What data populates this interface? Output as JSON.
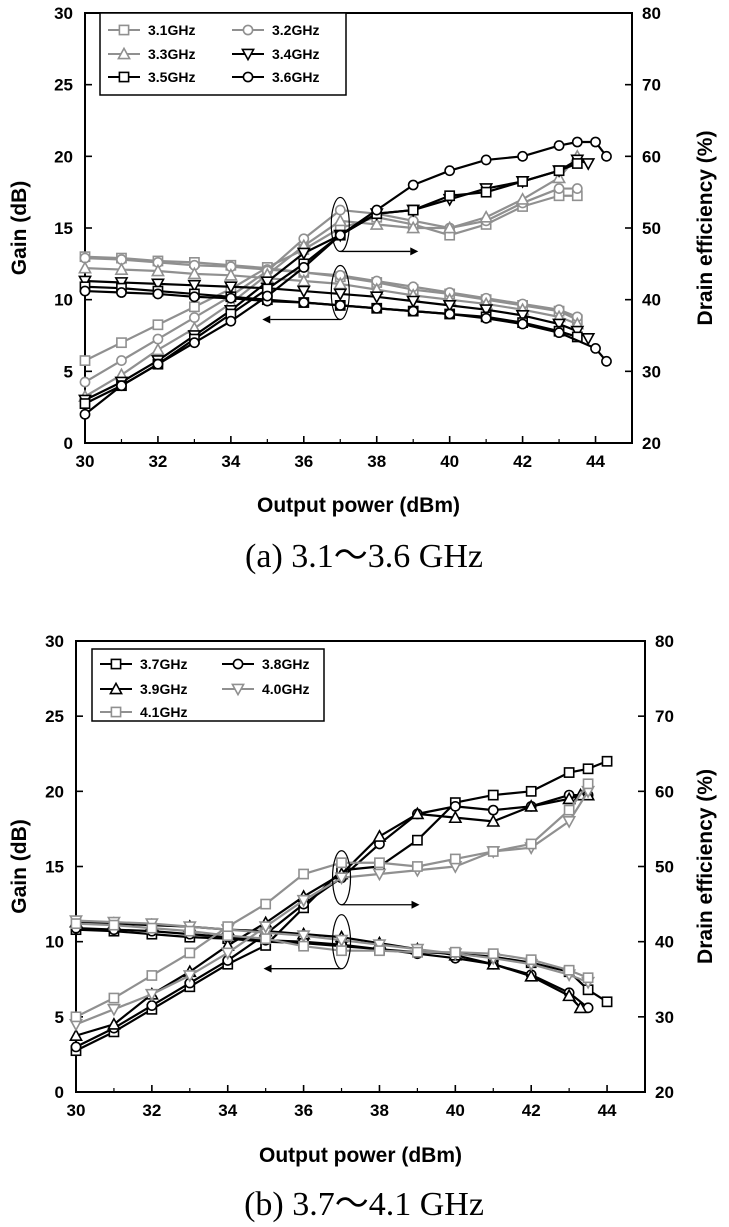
{
  "chart_data": [
    {
      "type": "line",
      "caption": "(a)  3.1～3.6  GHz",
      "xlabel": "Output power (dBm)",
      "ylabel": "Gain (dB)",
      "y2label": "Drain efficiency (%)",
      "xlim": [
        30,
        45
      ],
      "ylim": [
        0,
        30
      ],
      "y2lim": [
        20,
        80
      ],
      "xticks": [
        30,
        32,
        34,
        36,
        38,
        40,
        42,
        44
      ],
      "yticks": [
        0,
        5,
        10,
        15,
        20,
        25,
        30
      ],
      "y2ticks": [
        20,
        30,
        40,
        50,
        60,
        70,
        80
      ],
      "legend_position": "top-left",
      "annotations": [
        "ellipse at 37 dBm with arrow pointing right (efficiency axis)",
        "ellipse at 37 dBm with arrow pointing left (gain axis)"
      ],
      "series": [
        {
          "name": "3.1GHz",
          "marker": "square",
          "color": "#909090",
          "gain": {
            "x": [
              30,
              31,
              32,
              33,
              34,
              35,
              36,
              37,
              38,
              39,
              40,
              41,
              42,
              43,
              43.5
            ],
            "y": [
              13.0,
              12.9,
              12.7,
              12.6,
              12.4,
              12.2,
              11.9,
              11.6,
              11.2,
              10.7,
              10.4,
              10.0,
              9.6,
              9.2,
              8.6
            ]
          },
          "efficiency": {
            "x": [
              30,
              31,
              32,
              33,
              34,
              35,
              36,
              37,
              38,
              39,
              40,
              41,
              42,
              43,
              43.5
            ],
            "y": [
              31.5,
              34.0,
              36.5,
              39.0,
              41.5,
              44.5,
              47.0,
              50.0,
              51.5,
              50.5,
              49.0,
              50.5,
              53.0,
              54.5,
              54.5
            ]
          }
        },
        {
          "name": "3.2GHz",
          "marker": "circle",
          "color": "#909090",
          "gain": {
            "x": [
              30,
              31,
              32,
              33,
              34,
              35,
              36,
              37,
              38,
              39,
              40,
              41,
              42,
              43,
              43.5
            ],
            "y": [
              12.9,
              12.8,
              12.6,
              12.4,
              12.3,
              12.1,
              11.9,
              11.7,
              11.3,
              10.9,
              10.5,
              10.1,
              9.7,
              9.3,
              8.8
            ]
          },
          "efficiency": {
            "x": [
              30,
              31,
              32,
              33,
              34,
              35,
              36,
              37,
              38,
              39,
              40,
              41,
              42,
              43,
              43.5
            ],
            "y": [
              28.5,
              31.5,
              34.5,
              37.5,
              40.5,
              44.0,
              48.5,
              52.5,
              52.0,
              51.0,
              50.0,
              51.0,
              53.5,
              55.5,
              55.5
            ]
          }
        },
        {
          "name": "3.3GHz",
          "marker": "triangle-up",
          "color": "#909090",
          "gain": {
            "x": [
              30,
              31,
              32,
              33,
              34,
              35,
              36,
              37,
              38,
              39,
              40,
              41,
              42,
              43,
              43.5
            ],
            "y": [
              12.2,
              12.1,
              12.0,
              11.8,
              11.7,
              11.5,
              11.3,
              11.1,
              10.7,
              10.3,
              10.0,
              9.7,
              9.3,
              8.8,
              8.3
            ]
          },
          "efficiency": {
            "x": [
              30,
              31,
              32,
              33,
              34,
              35,
              36,
              37,
              38,
              39,
              40,
              41,
              42,
              43,
              43.5
            ],
            "y": [
              26.5,
              29.5,
              33.0,
              36.0,
              39.5,
              43.5,
              47.5,
              51.0,
              50.5,
              50.0,
              50.0,
              51.5,
              54.0,
              57.0,
              60.0
            ]
          }
        },
        {
          "name": "3.4GHz",
          "marker": "triangle-down",
          "color": "#000000",
          "gain": {
            "x": [
              30,
              31,
              32,
              33,
              34,
              35,
              36,
              37,
              38,
              39,
              40,
              41,
              42,
              43,
              43.5,
              43.8
            ],
            "y": [
              11.3,
              11.2,
              11.1,
              11.0,
              10.9,
              10.8,
              10.6,
              10.4,
              10.2,
              9.9,
              9.6,
              9.3,
              8.9,
              8.3,
              7.8,
              7.3
            ]
          },
          "efficiency": {
            "x": [
              30,
              31,
              32,
              33,
              34,
              35,
              36,
              37,
              38,
              39,
              40,
              41,
              42,
              43,
              43.5,
              43.8
            ],
            "y": [
              26.0,
              28.5,
              31.5,
              35.0,
              38.5,
              42.5,
              46.5,
              49.0,
              52.0,
              52.5,
              54.0,
              55.5,
              56.5,
              58.0,
              59.5,
              59.0
            ]
          }
        },
        {
          "name": "3.5GHz",
          "marker": "square",
          "color": "#000000",
          "gain": {
            "x": [
              30,
              31,
              32,
              33,
              34,
              35,
              36,
              37,
              38,
              39,
              40,
              41,
              42,
              43,
              43.5
            ],
            "y": [
              10.9,
              10.8,
              10.6,
              10.4,
              10.2,
              10.0,
              9.8,
              9.6,
              9.4,
              9.2,
              9.0,
              8.8,
              8.4,
              7.8,
              7.4
            ]
          },
          "efficiency": {
            "x": [
              30,
              31,
              32,
              33,
              34,
              35,
              36,
              37,
              38,
              39,
              40,
              41,
              42,
              43,
              43.5
            ],
            "y": [
              25.5,
              28.0,
              31.0,
              34.5,
              38.0,
              41.5,
              45.0,
              49.0,
              52.0,
              52.5,
              54.5,
              55.0,
              56.5,
              58.0,
              59.0
            ]
          }
        },
        {
          "name": "3.6GHz",
          "marker": "circle",
          "color": "#000000",
          "gain": {
            "x": [
              30,
              31,
              32,
              33,
              34,
              35,
              36,
              37,
              38,
              39,
              40,
              41,
              42,
              43,
              44,
              44.3
            ],
            "y": [
              10.6,
              10.5,
              10.4,
              10.2,
              10.1,
              9.9,
              9.8,
              9.6,
              9.4,
              9.2,
              9.0,
              8.7,
              8.3,
              7.7,
              6.6,
              5.7
            ]
          },
          "efficiency": {
            "x": [
              30,
              31,
              32,
              33,
              34,
              35,
              36,
              37,
              38,
              39,
              40,
              41,
              42,
              43,
              43.5,
              44,
              44.3
            ],
            "y": [
              24.0,
              28.0,
              31.0,
              34.0,
              37.0,
              40.5,
              44.5,
              49.0,
              52.5,
              56.0,
              58.0,
              59.5,
              60.0,
              61.5,
              62.0,
              62.0,
              60.0
            ]
          }
        }
      ]
    },
    {
      "type": "line",
      "caption": "(b)  3.7～4.1  GHz",
      "xlabel": "Output power (dBm)",
      "ylabel": "Gain (dB)",
      "y2label": "Drain efficiency (%)",
      "xlim": [
        30,
        45
      ],
      "ylim": [
        0,
        30
      ],
      "y2lim": [
        20,
        80
      ],
      "xticks": [
        30,
        32,
        34,
        36,
        38,
        40,
        42,
        44
      ],
      "yticks": [
        0,
        5,
        10,
        15,
        20,
        25,
        30
      ],
      "y2ticks": [
        20,
        30,
        40,
        50,
        60,
        70,
        80
      ],
      "legend_position": "top-left",
      "annotations": [
        "ellipse at 37 dBm with arrow pointing right (efficiency axis)",
        "ellipse at 37 dBm with arrow pointing left (gain axis)"
      ],
      "series": [
        {
          "name": "3.7GHz",
          "marker": "square",
          "color": "#000000",
          "gain": {
            "x": [
              30,
              31,
              32,
              33,
              34,
              35,
              36,
              37,
              38,
              39,
              40,
              41,
              42,
              43,
              43.5,
              44
            ],
            "y": [
              10.8,
              10.7,
              10.5,
              10.3,
              10.2,
              10.0,
              9.9,
              9.7,
              9.5,
              9.3,
              9.2,
              9.0,
              8.6,
              8.0,
              6.8,
              6.0
            ]
          },
          "efficiency": {
            "x": [
              30,
              31,
              32,
              33,
              34,
              35,
              36,
              37,
              38,
              39,
              40,
              41,
              42,
              43,
              43.5,
              44
            ],
            "y": [
              25.5,
              28.0,
              31.0,
              34.0,
              37.0,
              39.5,
              44.5,
              49.5,
              50.0,
              53.5,
              58.5,
              59.5,
              60.0,
              62.5,
              63.0,
              64.0
            ]
          }
        },
        {
          "name": "3.8GHz",
          "marker": "circle",
          "color": "#000000",
          "gain": {
            "x": [
              30,
              31,
              32,
              33,
              34,
              35,
              36,
              37,
              38,
              39,
              40,
              41,
              42,
              43,
              43.5
            ],
            "y": [
              10.9,
              10.8,
              10.7,
              10.5,
              10.3,
              10.1,
              10.0,
              9.8,
              9.5,
              9.2,
              8.9,
              8.5,
              7.8,
              6.6,
              5.6
            ]
          },
          "efficiency": {
            "x": [
              30,
              31,
              32,
              33,
              34,
              35,
              36,
              37,
              38,
              39,
              40,
              41,
              42,
              43,
              43.5
            ],
            "y": [
              26.0,
              28.5,
              31.5,
              34.5,
              37.5,
              41.0,
              45.0,
              48.5,
              53.0,
              57.0,
              58.0,
              57.5,
              58.0,
              59.5,
              59.5
            ]
          }
        },
        {
          "name": "3.9GHz",
          "marker": "triangle-up",
          "color": "#000000",
          "gain": {
            "x": [
              30,
              31,
              32,
              33,
              34,
              35,
              36,
              37,
              38,
              39,
              40,
              41,
              42,
              43,
              43.3
            ],
            "y": [
              11.3,
              11.2,
              11.1,
              11.0,
              10.8,
              10.7,
              10.5,
              10.3,
              9.9,
              9.5,
              9.1,
              8.5,
              7.7,
              6.4,
              5.6
            ]
          },
          "efficiency": {
            "x": [
              30,
              31,
              32,
              33,
              34,
              35,
              36,
              37,
              38,
              39,
              40,
              41,
              42,
              43,
              43.3,
              43.5
            ],
            "y": [
              27.5,
              29.0,
              33.0,
              36.0,
              39.5,
              42.5,
              46.0,
              49.0,
              54.0,
              57.0,
              56.5,
              56.0,
              58.0,
              59.0,
              59.5,
              59.5
            ]
          }
        },
        {
          "name": "4.0GHz",
          "marker": "triangle-down",
          "color": "#909090",
          "gain": {
            "x": [
              30,
              31,
              32,
              33,
              34,
              35,
              36,
              37,
              38,
              39,
              40,
              41,
              42,
              43,
              43.5
            ],
            "y": [
              11.4,
              11.3,
              11.2,
              11.0,
              10.8,
              10.6,
              10.4,
              10.1,
              9.8,
              9.5,
              9.2,
              8.9,
              8.5,
              7.8,
              7.3
            ]
          },
          "efficiency": {
            "x": [
              30,
              31,
              32,
              33,
              34,
              35,
              36,
              37,
              38,
              39,
              40,
              41,
              42,
              43,
              43.5
            ],
            "y": [
              29.0,
              31.0,
              33.0,
              35.5,
              38.5,
              42.0,
              45.5,
              48.5,
              49.0,
              49.5,
              50.0,
              52.0,
              52.5,
              56.0,
              60.0
            ]
          }
        },
        {
          "name": "4.1GHz",
          "marker": "square",
          "color": "#909090",
          "gain": {
            "x": [
              30,
              31,
              32,
              33,
              34,
              35,
              36,
              37,
              38,
              39,
              40,
              41,
              42,
              43,
              43.5
            ],
            "y": [
              11.2,
              11.1,
              10.9,
              10.7,
              10.4,
              10.2,
              9.7,
              9.4,
              9.4,
              9.3,
              9.3,
              9.2,
              8.8,
              8.1,
              7.6
            ]
          },
          "efficiency": {
            "x": [
              30,
              31,
              32,
              33,
              34,
              35,
              36,
              37,
              38,
              39,
              40,
              41,
              42,
              43,
              43.5
            ],
            "y": [
              30.0,
              32.5,
              35.5,
              38.5,
              42.0,
              45.0,
              49.0,
              50.5,
              50.5,
              50.0,
              51.0,
              52.0,
              53.0,
              57.5,
              61.0
            ]
          }
        }
      ]
    }
  ]
}
